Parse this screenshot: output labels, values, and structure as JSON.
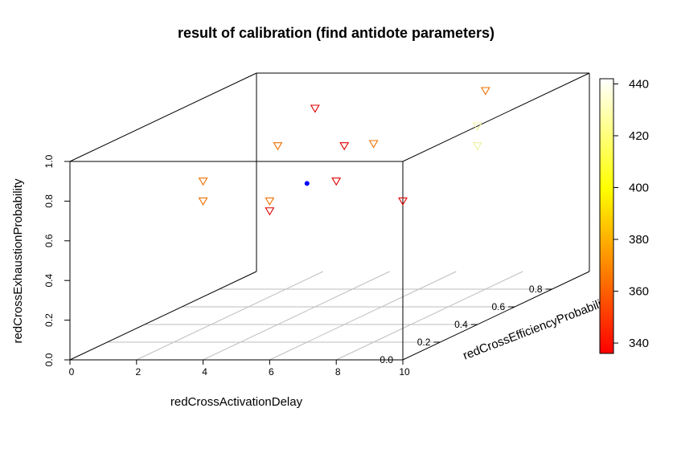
{
  "chart_data": {
    "type": "scatter",
    "title": "result of calibration (find antidote parameters)",
    "xlabel": "redCrossActivationDelay",
    "ylabel": "redCrossEfficiencyProbability",
    "zlabel": "redCrossExhaustionProbability",
    "x_ticks": [
      "0",
      "2",
      "4",
      "6",
      "8",
      "10"
    ],
    "y_ticks": [
      "0.0",
      "0.2",
      "0.4",
      "0.6",
      "0.8"
    ],
    "z_ticks": [
      "0.0",
      "0.2",
      "0.4",
      "0.6",
      "0.8",
      "1.0"
    ],
    "xlim": [
      0,
      10
    ],
    "ylim": [
      0,
      1
    ],
    "zlim": [
      0,
      1
    ],
    "colorbar": {
      "ticks": [
        "340",
        "360",
        "380",
        "400",
        "420",
        "440"
      ],
      "range": [
        336,
        442
      ],
      "colors": [
        "#ff0000",
        "#ffff00",
        "#ffffff"
      ]
    },
    "points": [
      {
        "x": 10,
        "y": 0.4,
        "z": 1.0,
        "v": 442
      },
      {
        "x": 10,
        "y": 0.4,
        "z": 0.9,
        "v": 438
      },
      {
        "x": 8,
        "y": 0.2,
        "z": 1.0,
        "v": 385
      },
      {
        "x": 8,
        "y": 0.8,
        "z": 1.0,
        "v": 390
      },
      {
        "x": 8,
        "y": 0.0,
        "z": 0.9,
        "v": 355
      },
      {
        "x": 4,
        "y": 0.6,
        "z": 1.0,
        "v": 345
      },
      {
        "x": 4,
        "y": 0.4,
        "z": 0.9,
        "v": 370
      },
      {
        "x": 4,
        "y": 0.0,
        "z": 0.9,
        "v": 380
      },
      {
        "x": 4,
        "y": 0.0,
        "z": 0.8,
        "v": 385
      },
      {
        "x": 6,
        "y": 0.4,
        "z": 0.9,
        "v": 350
      },
      {
        "x": 6,
        "y": 0.0,
        "z": 0.8,
        "v": 372
      },
      {
        "x": 6,
        "y": 0.0,
        "z": 0.75,
        "v": 352
      },
      {
        "x": 10,
        "y": 0.0,
        "z": 0.8,
        "v": 340
      }
    ],
    "special_point": {
      "x": 6,
      "y": 0.2,
      "z": 0.8,
      "color": "#0000ff"
    }
  }
}
